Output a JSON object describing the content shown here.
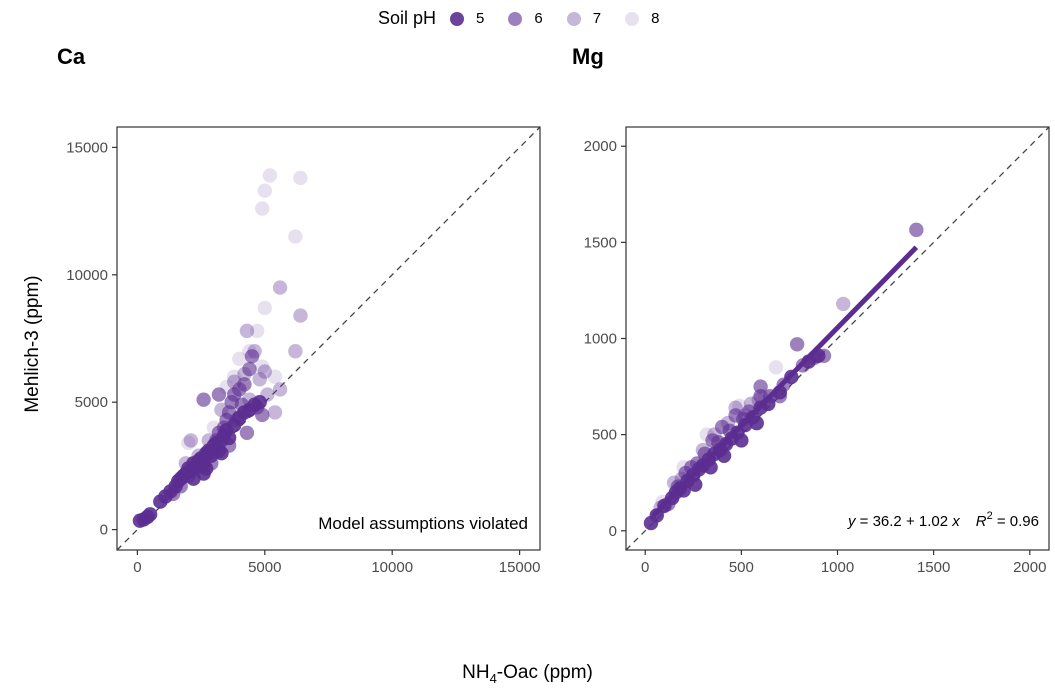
{
  "legend": {
    "title": "Soil pH",
    "items": [
      {
        "label": "5",
        "color": "#5b2d91",
        "opacity": 0.9
      },
      {
        "label": "6",
        "color": "#5b2d91",
        "opacity": 0.6
      },
      {
        "label": "7",
        "color": "#5b2d91",
        "opacity": 0.35
      },
      {
        "label": "8",
        "color": "#5b2d91",
        "opacity": 0.15
      }
    ]
  },
  "axes": {
    "ylabel": "Mehlich-3 (ppm)",
    "xlabel_main": "NH",
    "xlabel_sub": "4",
    "xlabel_rest": "-Oac (ppm)"
  },
  "chart_data": [
    {
      "type": "scatter",
      "title": "Ca",
      "xlim": [
        -800,
        15800
      ],
      "ylim": [
        -800,
        15800
      ],
      "xticks": [
        0,
        5000,
        10000,
        15000
      ],
      "yticks": [
        0,
        5000,
        10000,
        15000
      ],
      "annotation": "Model assumptions violated",
      "reference_line": "1:1 dashed",
      "points": [
        {
          "x": 100,
          "y": 350,
          "ph": 5
        },
        {
          "x": 250,
          "y": 400,
          "ph": 5
        },
        {
          "x": 400,
          "y": 500,
          "ph": 5
        },
        {
          "x": 500,
          "y": 600,
          "ph": 5
        },
        {
          "x": 900,
          "y": 1100,
          "ph": 5
        },
        {
          "x": 1100,
          "y": 1300,
          "ph": 5
        },
        {
          "x": 1300,
          "y": 1500,
          "ph": 5
        },
        {
          "x": 1500,
          "y": 1700,
          "ph": 5
        },
        {
          "x": 1600,
          "y": 1900,
          "ph": 5
        },
        {
          "x": 1700,
          "y": 2000,
          "ph": 5
        },
        {
          "x": 1800,
          "y": 2100,
          "ph": 5
        },
        {
          "x": 1900,
          "y": 2200,
          "ph": 5
        },
        {
          "x": 2000,
          "y": 2400,
          "ph": 5
        },
        {
          "x": 2100,
          "y": 2300,
          "ph": 5
        },
        {
          "x": 2200,
          "y": 2600,
          "ph": 5
        },
        {
          "x": 2300,
          "y": 2500,
          "ph": 5
        },
        {
          "x": 2400,
          "y": 2700,
          "ph": 5
        },
        {
          "x": 2500,
          "y": 2800,
          "ph": 5
        },
        {
          "x": 2600,
          "y": 2600,
          "ph": 5
        },
        {
          "x": 2700,
          "y": 3000,
          "ph": 5
        },
        {
          "x": 2800,
          "y": 3100,
          "ph": 5
        },
        {
          "x": 2900,
          "y": 2900,
          "ph": 5
        },
        {
          "x": 3000,
          "y": 3300,
          "ph": 5
        },
        {
          "x": 3100,
          "y": 3400,
          "ph": 5
        },
        {
          "x": 3200,
          "y": 3100,
          "ph": 5
        },
        {
          "x": 3300,
          "y": 3500,
          "ph": 5
        },
        {
          "x": 3400,
          "y": 3700,
          "ph": 5
        },
        {
          "x": 3500,
          "y": 3900,
          "ph": 5
        },
        {
          "x": 3600,
          "y": 3600,
          "ph": 5
        },
        {
          "x": 3800,
          "y": 4100,
          "ph": 5
        },
        {
          "x": 4000,
          "y": 4400,
          "ph": 5
        },
        {
          "x": 4200,
          "y": 4600,
          "ph": 5
        },
        {
          "x": 4400,
          "y": 4700,
          "ph": 5
        },
        {
          "x": 4600,
          "y": 4900,
          "ph": 5
        },
        {
          "x": 4800,
          "y": 5000,
          "ph": 5
        },
        {
          "x": 2600,
          "y": 2200,
          "ph": 5
        },
        {
          "x": 2200,
          "y": 2000,
          "ph": 5
        },
        {
          "x": 2700,
          "y": 2400,
          "ph": 5
        },
        {
          "x": 3300,
          "y": 3000,
          "ph": 5
        },
        {
          "x": 1400,
          "y": 1400,
          "ph": 6
        },
        {
          "x": 1700,
          "y": 1700,
          "ph": 6
        },
        {
          "x": 2000,
          "y": 2100,
          "ph": 6
        },
        {
          "x": 2300,
          "y": 2400,
          "ph": 6
        },
        {
          "x": 2500,
          "y": 2500,
          "ph": 6
        },
        {
          "x": 2800,
          "y": 3000,
          "ph": 6
        },
        {
          "x": 3000,
          "y": 3100,
          "ph": 6
        },
        {
          "x": 3100,
          "y": 3500,
          "ph": 6
        },
        {
          "x": 3200,
          "y": 3800,
          "ph": 6
        },
        {
          "x": 3400,
          "y": 4000,
          "ph": 6
        },
        {
          "x": 3500,
          "y": 4300,
          "ph": 6
        },
        {
          "x": 3600,
          "y": 4600,
          "ph": 6
        },
        {
          "x": 3700,
          "y": 5000,
          "ph": 6
        },
        {
          "x": 3800,
          "y": 5300,
          "ph": 6
        },
        {
          "x": 4000,
          "y": 5500,
          "ph": 6
        },
        {
          "x": 4100,
          "y": 4900,
          "ph": 6
        },
        {
          "x": 4200,
          "y": 5700,
          "ph": 6
        },
        {
          "x": 4400,
          "y": 6300,
          "ph": 6
        },
        {
          "x": 4500,
          "y": 6800,
          "ph": 6
        },
        {
          "x": 2600,
          "y": 5100,
          "ph": 6
        },
        {
          "x": 3200,
          "y": 5300,
          "ph": 6
        },
        {
          "x": 4300,
          "y": 3800,
          "ph": 6
        },
        {
          "x": 4700,
          "y": 4800,
          "ph": 6
        },
        {
          "x": 4900,
          "y": 4500,
          "ph": 6
        },
        {
          "x": 3900,
          "y": 4300,
          "ph": 6
        },
        {
          "x": 2900,
          "y": 2600,
          "ph": 6
        },
        {
          "x": 3600,
          "y": 3300,
          "ph": 6
        },
        {
          "x": 1900,
          "y": 2600,
          "ph": 7
        },
        {
          "x": 2100,
          "y": 3500,
          "ph": 7
        },
        {
          "x": 2400,
          "y": 2900,
          "ph": 7
        },
        {
          "x": 3300,
          "y": 4700,
          "ph": 7
        },
        {
          "x": 3800,
          "y": 5800,
          "ph": 7
        },
        {
          "x": 4200,
          "y": 6100,
          "ph": 7
        },
        {
          "x": 4300,
          "y": 7800,
          "ph": 7
        },
        {
          "x": 4600,
          "y": 7000,
          "ph": 7
        },
        {
          "x": 4800,
          "y": 5900,
          "ph": 7
        },
        {
          "x": 5000,
          "y": 6200,
          "ph": 7
        },
        {
          "x": 5100,
          "y": 5300,
          "ph": 7
        },
        {
          "x": 5400,
          "y": 4600,
          "ph": 7
        },
        {
          "x": 5600,
          "y": 5500,
          "ph": 7
        },
        {
          "x": 5600,
          "y": 9500,
          "ph": 7
        },
        {
          "x": 6200,
          "y": 7000,
          "ph": 7
        },
        {
          "x": 6400,
          "y": 8400,
          "ph": 7
        },
        {
          "x": 4400,
          "y": 5100,
          "ph": 7
        },
        {
          "x": 2800,
          "y": 3500,
          "ph": 7
        },
        {
          "x": 2000,
          "y": 3400,
          "ph": 8
        },
        {
          "x": 3000,
          "y": 4000,
          "ph": 8
        },
        {
          "x": 3500,
          "y": 5600,
          "ph": 8
        },
        {
          "x": 4000,
          "y": 6700,
          "ph": 8
        },
        {
          "x": 4400,
          "y": 7000,
          "ph": 8
        },
        {
          "x": 4700,
          "y": 7800,
          "ph": 8
        },
        {
          "x": 4900,
          "y": 6400,
          "ph": 8
        },
        {
          "x": 5000,
          "y": 8700,
          "ph": 8
        },
        {
          "x": 4900,
          "y": 12600,
          "ph": 8
        },
        {
          "x": 5000,
          "y": 13300,
          "ph": 8
        },
        {
          "x": 5200,
          "y": 13900,
          "ph": 8
        },
        {
          "x": 6200,
          "y": 11500,
          "ph": 8
        },
        {
          "x": 6400,
          "y": 13800,
          "ph": 8
        },
        {
          "x": 5400,
          "y": 6000,
          "ph": 8
        },
        {
          "x": 3800,
          "y": 6000,
          "ph": 8
        }
      ]
    },
    {
      "type": "scatter",
      "title": "Mg",
      "xlim": [
        -100,
        2100
      ],
      "ylim": [
        -100,
        2100
      ],
      "xticks": [
        0,
        500,
        1000,
        1500,
        2000
      ],
      "yticks": [
        0,
        500,
        1000,
        1500,
        2000
      ],
      "annotation": "y = 36.2 + 1.02 x   R² = 0.96",
      "annotation_parts": {
        "y": "y",
        "eq": " = 36.2 + 1.02 ",
        "x": "x",
        "r": "R",
        "sup": "2",
        "r2val": " = 0.96"
      },
      "reference_line": "1:1 dashed",
      "fit": {
        "intercept": 36.2,
        "slope": 1.02,
        "x_range": [
          40,
          1410
        ],
        "color": "#5b2d91"
      },
      "points": [
        {
          "x": 30,
          "y": 40,
          "ph": 5
        },
        {
          "x": 60,
          "y": 80,
          "ph": 5
        },
        {
          "x": 100,
          "y": 130,
          "ph": 5
        },
        {
          "x": 140,
          "y": 170,
          "ph": 5
        },
        {
          "x": 180,
          "y": 220,
          "ph": 5
        },
        {
          "x": 220,
          "y": 260,
          "ph": 5
        },
        {
          "x": 250,
          "y": 290,
          "ph": 5
        },
        {
          "x": 280,
          "y": 320,
          "ph": 5
        },
        {
          "x": 300,
          "y": 340,
          "ph": 5
        },
        {
          "x": 330,
          "y": 370,
          "ph": 5
        },
        {
          "x": 360,
          "y": 400,
          "ph": 5
        },
        {
          "x": 390,
          "y": 420,
          "ph": 5
        },
        {
          "x": 420,
          "y": 450,
          "ph": 5
        },
        {
          "x": 450,
          "y": 480,
          "ph": 5
        },
        {
          "x": 480,
          "y": 510,
          "ph": 5
        },
        {
          "x": 520,
          "y": 550,
          "ph": 5
        },
        {
          "x": 560,
          "y": 590,
          "ph": 5
        },
        {
          "x": 600,
          "y": 640,
          "ph": 5
        },
        {
          "x": 640,
          "y": 660,
          "ph": 5
        },
        {
          "x": 700,
          "y": 720,
          "ph": 5
        },
        {
          "x": 760,
          "y": 800,
          "ph": 5
        },
        {
          "x": 850,
          "y": 880,
          "ph": 5
        },
        {
          "x": 900,
          "y": 910,
          "ph": 5
        },
        {
          "x": 200,
          "y": 210,
          "ph": 5
        },
        {
          "x": 260,
          "y": 240,
          "ph": 5
        },
        {
          "x": 340,
          "y": 330,
          "ph": 5
        },
        {
          "x": 410,
          "y": 390,
          "ph": 5
        },
        {
          "x": 500,
          "y": 470,
          "ph": 5
        },
        {
          "x": 580,
          "y": 560,
          "ph": 5
        },
        {
          "x": 160,
          "y": 200,
          "ph": 5
        },
        {
          "x": 120,
          "y": 140,
          "ph": 6
        },
        {
          "x": 170,
          "y": 230,
          "ph": 6
        },
        {
          "x": 210,
          "y": 300,
          "ph": 6
        },
        {
          "x": 240,
          "y": 330,
          "ph": 6
        },
        {
          "x": 270,
          "y": 350,
          "ph": 6
        },
        {
          "x": 310,
          "y": 400,
          "ph": 6
        },
        {
          "x": 350,
          "y": 470,
          "ph": 6
        },
        {
          "x": 380,
          "y": 460,
          "ph": 6
        },
        {
          "x": 400,
          "y": 540,
          "ph": 6
        },
        {
          "x": 440,
          "y": 520,
          "ph": 6
        },
        {
          "x": 470,
          "y": 600,
          "ph": 6
        },
        {
          "x": 510,
          "y": 580,
          "ph": 6
        },
        {
          "x": 540,
          "y": 620,
          "ph": 6
        },
        {
          "x": 600,
          "y": 700,
          "ph": 6
        },
        {
          "x": 600,
          "y": 750,
          "ph": 6
        },
        {
          "x": 650,
          "y": 700,
          "ph": 6
        },
        {
          "x": 720,
          "y": 760,
          "ph": 6
        },
        {
          "x": 790,
          "y": 970,
          "ph": 6
        },
        {
          "x": 820,
          "y": 860,
          "ph": 6
        },
        {
          "x": 880,
          "y": 900,
          "ph": 6
        },
        {
          "x": 930,
          "y": 910,
          "ph": 6
        },
        {
          "x": 700,
          "y": 700,
          "ph": 6
        },
        {
          "x": 1410,
          "y": 1565,
          "ph": 6
        },
        {
          "x": 80,
          "y": 120,
          "ph": 7
        },
        {
          "x": 150,
          "y": 250,
          "ph": 7
        },
        {
          "x": 190,
          "y": 270,
          "ph": 7
        },
        {
          "x": 300,
          "y": 420,
          "ph": 7
        },
        {
          "x": 360,
          "y": 500,
          "ph": 7
        },
        {
          "x": 430,
          "y": 560,
          "ph": 7
        },
        {
          "x": 470,
          "y": 640,
          "ph": 7
        },
        {
          "x": 520,
          "y": 600,
          "ph": 7
        },
        {
          "x": 590,
          "y": 680,
          "ph": 7
        },
        {
          "x": 1030,
          "y": 1180,
          "ph": 7
        },
        {
          "x": 550,
          "y": 660,
          "ph": 7
        },
        {
          "x": 90,
          "y": 150,
          "ph": 8
        },
        {
          "x": 200,
          "y": 330,
          "ph": 8
        },
        {
          "x": 320,
          "y": 500,
          "ph": 8
        },
        {
          "x": 490,
          "y": 650,
          "ph": 8
        },
        {
          "x": 680,
          "y": 850,
          "ph": 8
        },
        {
          "x": 620,
          "y": 700,
          "ph": 8
        }
      ]
    }
  ]
}
